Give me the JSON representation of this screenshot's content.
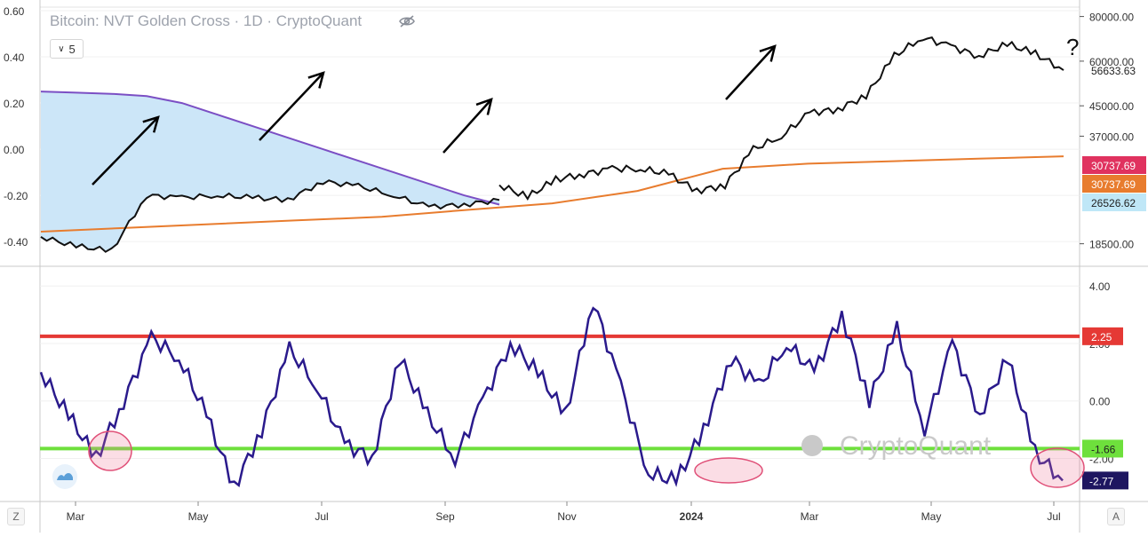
{
  "chart_data": [
    {
      "type": "line",
      "title": "Bitcoin: NVT Golden Cross · 1D · CryptoQuant",
      "left_axis": {
        "ticks": [
          "0.60",
          "0.40",
          "0.20",
          "0.00",
          "-0.20",
          "-0.40"
        ],
        "ylim": [
          -0.5,
          0.6
        ]
      },
      "right_axis": {
        "scale": "log",
        "ticks": [
          "80000.00",
          "60000.00",
          "45000.00",
          "37000.00",
          "18500.00"
        ]
      },
      "x_ticks": [
        "Mar",
        "May",
        "Jul",
        "Sep",
        "Nov",
        "2024",
        "Mar",
        "May",
        "Jul"
      ],
      "price_labels": [
        {
          "text": "56633.63",
          "color": "#222222"
        },
        {
          "text": "30737.69",
          "color": "#e0325f"
        },
        {
          "text": "30737.69",
          "color": "#e87c2e"
        },
        {
          "text": "26526.62",
          "color": "#bfe7f7"
        }
      ],
      "series": [
        {
          "values": [
            0.25,
            0.245,
            0.24,
            0.23,
            0.2,
            0.15,
            0.1,
            0.05,
            0.0,
            -0.05,
            -0.1,
            -0.15,
            -0.2,
            -0.24
          ]
        },
        {
          "values": [
            -0.38,
            -0.42,
            -0.44,
            -0.2,
            -0.21,
            -0.2,
            -0.21,
            -0.22,
            -0.14,
            -0.16,
            -0.2,
            -0.25,
            -0.24,
            -0.22
          ]
        },
        {
          "values": [
            20000,
            20500,
            21000,
            21500,
            22000,
            23000,
            24000,
            26000,
            30000,
            31000,
            31500,
            32000,
            32500
          ]
        },
        {
          "values": [
            27000,
            25000,
            28000,
            29000,
            30000,
            30000,
            29000,
            26000,
            27000,
            34000,
            37000,
            43000,
            44000,
            48000,
            62000,
            70000,
            66000,
            62000,
            67000,
            63000,
            56600
          ]
        }
      ],
      "annotation": "?",
      "legend_value": "5"
    },
    {
      "type": "line",
      "y_axis": {
        "ticks": [
          "4.00",
          "2.00",
          "0.00",
          "-2.00"
        ],
        "ylim": [
          -3.5,
          4.5
        ]
      },
      "series": [
        {
          "values": [
            1.0,
            -0.5,
            -2.0,
            0.0,
            2.2,
            1.5,
            -0.5,
            -3.0,
            -1.0,
            1.8,
            0.5,
            -1.5,
            -2.0,
            1.5,
            -0.5,
            -2.0,
            0.0,
            2.0,
            1.0,
            -0.5,
            3.5,
            0.5,
            -2.5,
            -2.8,
            -1.0,
            1.5,
            0.5,
            2.0,
            1.0,
            3.0,
            0.0,
            2.5,
            -1.0,
            2.0,
            -0.5,
            1.5,
            -1.8,
            -2.77
          ]
        }
      ],
      "hlines": [
        {
          "value": 2.25,
          "label": "2.25",
          "color": "#e53935"
        },
        {
          "value": -1.66,
          "label": "-1.66",
          "color": "#6ee03c"
        }
      ],
      "last_label": "-2.77",
      "watermark": "CryptoQuant"
    }
  ],
  "ui": {
    "left_corner": "Z",
    "right_corner": "A"
  }
}
